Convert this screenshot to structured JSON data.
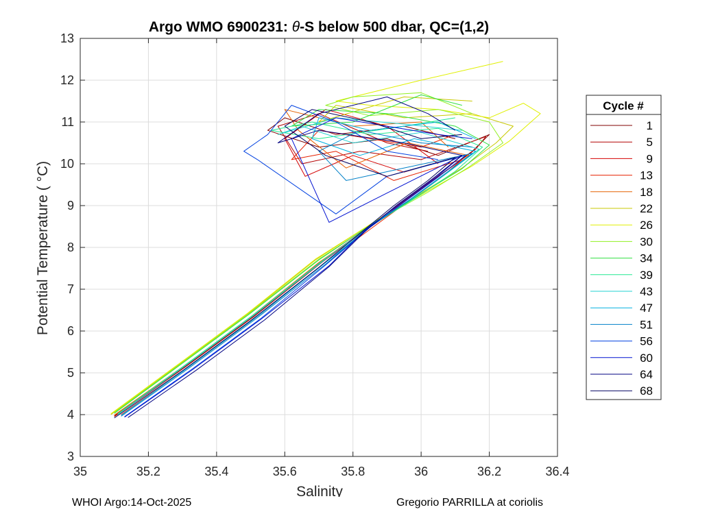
{
  "chart_data": {
    "type": "line",
    "title": "Argo WMO 6900231: θ-S below 500 dbar,  QC=(1,2)",
    "title_parts": {
      "before": "Argo WMO 6900231: ",
      "theta": "θ",
      "after": "-S below 500 dbar,  QC=(1,2)"
    },
    "xlabel": "Salinity",
    "ylabel": "Potential Temperature ( °C)",
    "xlim": [
      35,
      36.4
    ],
    "ylim": [
      3,
      13
    ],
    "xticks": [
      35,
      35.2,
      35.4,
      35.6,
      35.8,
      36,
      36.2,
      36.4
    ],
    "xtick_labels": [
      "35",
      "35.2",
      "35.4",
      "35.6",
      "35.8",
      "36",
      "36.2",
      "36.4"
    ],
    "yticks": [
      3,
      4,
      5,
      6,
      7,
      8,
      9,
      10,
      11,
      12,
      13
    ],
    "ytick_labels": [
      "3",
      "4",
      "5",
      "6",
      "7",
      "8",
      "9",
      "10",
      "11",
      "12",
      "13"
    ],
    "grid": true,
    "legend": {
      "title": "Cycle #",
      "placement": "right outside",
      "entries": [
        {
          "label": "1",
          "color": "#800000"
        },
        {
          "label": "5",
          "color": "#b30000"
        },
        {
          "label": "9",
          "color": "#d40000"
        },
        {
          "label": "13",
          "color": "#e62000"
        },
        {
          "label": "18",
          "color": "#e66000"
        },
        {
          "label": "22",
          "color": "#c8c800"
        },
        {
          "label": "26",
          "color": "#e0f000"
        },
        {
          "label": "30",
          "color": "#90f020"
        },
        {
          "label": "34",
          "color": "#30e040"
        },
        {
          "label": "39",
          "color": "#20e890"
        },
        {
          "label": "43",
          "color": "#20d0d0"
        },
        {
          "label": "47",
          "color": "#00b0e0"
        },
        {
          "label": "51",
          "color": "#0080c8"
        },
        {
          "label": "56",
          "color": "#0040e0"
        },
        {
          "label": "60",
          "color": "#0010d0"
        },
        {
          "label": "64",
          "color": "#000080"
        },
        {
          "label": "68",
          "color": "#000060"
        }
      ]
    },
    "series": [
      {
        "name": "1",
        "x": [
          35.1,
          35.3,
          35.5,
          35.7,
          35.85,
          35.95,
          36.05,
          36.15,
          36.2,
          36.05,
          35.9,
          35.7,
          35.55,
          35.6,
          35.75,
          35.95,
          36.1
        ],
        "y": [
          3.95,
          5.1,
          6.3,
          7.6,
          8.5,
          9.1,
          9.7,
          10.3,
          10.7,
          10.2,
          10.6,
          10.4,
          10.8,
          11.1,
          10.7,
          10.9,
          10.6
        ]
      },
      {
        "name": "5",
        "x": [
          35.11,
          35.31,
          35.51,
          35.71,
          35.86,
          35.96,
          36.06,
          36.16,
          36.19,
          36.0,
          35.82,
          35.65,
          35.58,
          35.7,
          35.9,
          36.02
        ],
        "y": [
          4.0,
          5.15,
          6.35,
          7.65,
          8.55,
          9.15,
          9.75,
          10.35,
          10.65,
          10.1,
          10.3,
          10.0,
          10.9,
          11.2,
          10.5,
          10.3
        ]
      },
      {
        "name": "9",
        "x": [
          35.1,
          35.3,
          35.5,
          35.7,
          35.85,
          35.95,
          36.05,
          36.12,
          35.95,
          35.8,
          35.66,
          35.6,
          35.72,
          35.9,
          36.05
        ],
        "y": [
          3.97,
          5.12,
          6.32,
          7.62,
          8.52,
          9.12,
          9.72,
          10.2,
          9.8,
          10.2,
          9.7,
          10.6,
          11.3,
          10.9,
          10.0
        ]
      },
      {
        "name": "13",
        "x": [
          35.12,
          35.32,
          35.52,
          35.72,
          35.87,
          35.97,
          36.07,
          36.12,
          35.92,
          35.75,
          35.62,
          35.7,
          35.85,
          36.0,
          36.1
        ],
        "y": [
          4.0,
          5.15,
          6.35,
          7.65,
          8.55,
          9.15,
          9.75,
          10.1,
          9.6,
          10.3,
          10.1,
          10.8,
          10.6,
          10.4,
          10.7
        ]
      },
      {
        "name": "18",
        "x": [
          35.1,
          35.3,
          35.5,
          35.7,
          35.86,
          35.97,
          36.07,
          36.14,
          35.96,
          35.78,
          35.64,
          35.6,
          35.8,
          36.0,
          36.08
        ],
        "y": [
          3.99,
          5.14,
          6.34,
          7.64,
          8.54,
          9.14,
          9.74,
          10.2,
          10.5,
          9.9,
          10.8,
          11.3,
          10.9,
          11.0,
          10.4
        ]
      },
      {
        "name": "22",
        "x": [
          35.09,
          35.29,
          35.49,
          35.69,
          35.87,
          36.0,
          36.12,
          36.22,
          36.27,
          36.15,
          35.95,
          35.75,
          35.7,
          35.95,
          36.15
        ],
        "y": [
          4.0,
          5.2,
          6.4,
          7.7,
          8.65,
          9.3,
          9.9,
          10.5,
          10.9,
          11.2,
          11.1,
          11.4,
          11.0,
          11.6,
          11.5
        ]
      },
      {
        "name": "26",
        "x": [
          35.09,
          35.29,
          35.49,
          35.69,
          35.88,
          36.02,
          36.15,
          36.26,
          36.35,
          36.3,
          36.2,
          36.05,
          35.85,
          35.75,
          36.0,
          36.24
        ],
        "y": [
          4.02,
          5.22,
          6.42,
          7.72,
          8.7,
          9.35,
          9.95,
          10.55,
          11.2,
          11.45,
          11.1,
          11.3,
          11.4,
          11.5,
          12.0,
          12.45
        ]
      },
      {
        "name": "30",
        "x": [
          35.1,
          35.3,
          35.5,
          35.7,
          35.88,
          36.02,
          36.14,
          36.24,
          36.2,
          36.05,
          35.85,
          35.72,
          35.8,
          36.0,
          36.15
        ],
        "y": [
          4.05,
          5.25,
          6.45,
          7.72,
          8.68,
          9.32,
          9.92,
          10.5,
          11.0,
          11.3,
          11.15,
          11.4,
          11.6,
          11.7,
          11.2
        ]
      },
      {
        "name": "34",
        "x": [
          35.1,
          35.3,
          35.5,
          35.7,
          35.87,
          36.0,
          36.12,
          36.2,
          36.1,
          35.9,
          35.7,
          35.62,
          35.8,
          36.0,
          36.12
        ],
        "y": [
          4.03,
          5.23,
          6.43,
          7.7,
          8.64,
          9.28,
          9.88,
          10.45,
          10.9,
          11.2,
          11.3,
          10.9,
          11.0,
          11.65,
          11.4
        ]
      },
      {
        "name": "39",
        "x": [
          35.11,
          35.31,
          35.51,
          35.71,
          35.87,
          35.99,
          36.1,
          36.18,
          36.05,
          35.85,
          35.68,
          35.56,
          35.7,
          35.95,
          36.1
        ],
        "y": [
          4.02,
          5.2,
          6.4,
          7.68,
          8.6,
          9.22,
          9.82,
          10.4,
          10.85,
          10.7,
          11.0,
          10.8,
          10.6,
          10.9,
          11.1
        ]
      },
      {
        "name": "43",
        "x": [
          35.11,
          35.31,
          35.51,
          35.71,
          35.86,
          35.98,
          36.08,
          36.17,
          36.0,
          35.8,
          35.65,
          35.58,
          35.75,
          35.95,
          36.12
        ],
        "y": [
          4.0,
          5.18,
          6.38,
          7.66,
          8.58,
          9.2,
          9.8,
          10.35,
          10.75,
          10.5,
          10.9,
          10.7,
          11.1,
          10.95,
          10.8
        ]
      },
      {
        "name": "47",
        "x": [
          35.12,
          35.32,
          35.52,
          35.72,
          35.86,
          35.97,
          36.07,
          36.16,
          35.98,
          35.82,
          35.68,
          35.7,
          35.85,
          36.05,
          36.16
        ],
        "y": [
          3.98,
          5.15,
          6.35,
          7.64,
          8.55,
          9.16,
          9.76,
          10.3,
          10.6,
          10.2,
          10.6,
          11.1,
          10.8,
          11.0,
          10.6
        ]
      },
      {
        "name": "51",
        "x": [
          35.12,
          35.32,
          35.52,
          35.72,
          35.85,
          35.96,
          36.06,
          36.15,
          35.95,
          35.78,
          35.7,
          35.82,
          36.0,
          36.15
        ],
        "y": [
          3.96,
          5.12,
          6.32,
          7.6,
          8.5,
          9.1,
          9.7,
          10.25,
          9.9,
          9.6,
          10.3,
          10.8,
          10.5,
          10.4
        ]
      },
      {
        "name": "56",
        "x": [
          35.13,
          35.33,
          35.53,
          35.72,
          35.85,
          35.95,
          36.05,
          36.13,
          35.9,
          35.75,
          35.52,
          35.48,
          35.55,
          35.62,
          35.75,
          35.9,
          36.05
        ],
        "y": [
          3.95,
          5.1,
          6.3,
          7.58,
          8.48,
          9.08,
          9.68,
          10.2,
          9.7,
          8.8,
          10.1,
          10.3,
          10.7,
          11.4,
          11.0,
          10.3,
          10.1
        ]
      },
      {
        "name": "60",
        "x": [
          35.13,
          35.33,
          35.53,
          35.73,
          35.84,
          35.94,
          36.04,
          36.12,
          35.9,
          35.73,
          35.62,
          35.75,
          35.9,
          36.05,
          36.15
        ],
        "y": [
          3.94,
          5.08,
          6.28,
          7.56,
          8.45,
          9.05,
          9.65,
          10.2,
          9.3,
          8.6,
          10.6,
          11.1,
          10.9,
          10.7,
          10.6
        ]
      },
      {
        "name": "64",
        "x": [
          35.14,
          35.34,
          35.54,
          35.73,
          35.84,
          35.93,
          36.03,
          36.12,
          35.95,
          35.7,
          35.58,
          35.7,
          35.9,
          36.02,
          36.1
        ],
        "y": [
          3.93,
          5.06,
          6.26,
          7.54,
          8.42,
          9.02,
          9.62,
          10.2,
          10.5,
          10.8,
          10.5,
          11.2,
          11.6,
          11.2,
          10.8
        ]
      },
      {
        "name": "68",
        "x": [
          35.1,
          35.3,
          35.5,
          35.7,
          35.83,
          35.92,
          36.02,
          36.1,
          35.9,
          35.72,
          35.6,
          35.68,
          35.85,
          36.0,
          36.12
        ],
        "y": [
          3.92,
          5.05,
          6.25,
          7.52,
          8.4,
          9.0,
          9.6,
          10.15,
          9.7,
          10.2,
          10.9,
          11.3,
          11.0,
          10.6,
          10.7
        ]
      }
    ]
  },
  "footer": {
    "left": "WHOI Argo:14-Oct-2025",
    "right": "Gregorio PARRILLA at coriolis"
  }
}
